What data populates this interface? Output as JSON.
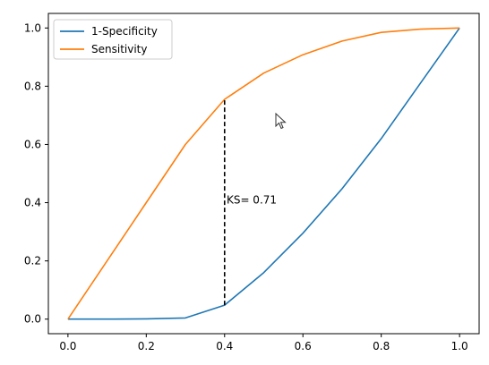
{
  "chart_data": {
    "type": "line",
    "title": "",
    "xlabel": "",
    "ylabel": "",
    "xlim": [
      -0.05,
      1.05
    ],
    "ylim": [
      -0.05,
      1.05
    ],
    "xticks": [
      "0.0",
      "0.2",
      "0.4",
      "0.6",
      "0.8",
      "1.0"
    ],
    "yticks": [
      "0.0",
      "0.2",
      "0.4",
      "0.6",
      "0.8",
      "1.0"
    ],
    "grid": false,
    "legend_position": "top-left",
    "series": [
      {
        "name": "1-Specificity",
        "color": "#1f77b4",
        "x": [
          0.0,
          0.1,
          0.2,
          0.3,
          0.4,
          0.5,
          0.6,
          0.7,
          0.8,
          0.9,
          1.0
        ],
        "y": [
          0.0,
          0.0,
          0.001,
          0.004,
          0.048,
          0.16,
          0.295,
          0.448,
          0.62,
          0.81,
          1.0
        ]
      },
      {
        "name": "Sensitivity",
        "color": "#ff7f0e",
        "x": [
          0.0,
          0.1,
          0.2,
          0.3,
          0.4,
          0.5,
          0.6,
          0.7,
          0.8,
          0.9,
          1.0
        ],
        "y": [
          0.0,
          0.2,
          0.4,
          0.6,
          0.755,
          0.845,
          0.908,
          0.955,
          0.985,
          0.996,
          1.0
        ]
      }
    ],
    "annotations": [
      {
        "type": "vline",
        "x": 0.4,
        "y_from": 0.048,
        "y_to": 0.755,
        "style": "dashed",
        "color": "#000000"
      },
      {
        "type": "text",
        "text": "KS= 0.71",
        "x": 0.405,
        "y": 0.41
      }
    ]
  },
  "cursor": {
    "icon": "mouse-pointer-icon"
  }
}
